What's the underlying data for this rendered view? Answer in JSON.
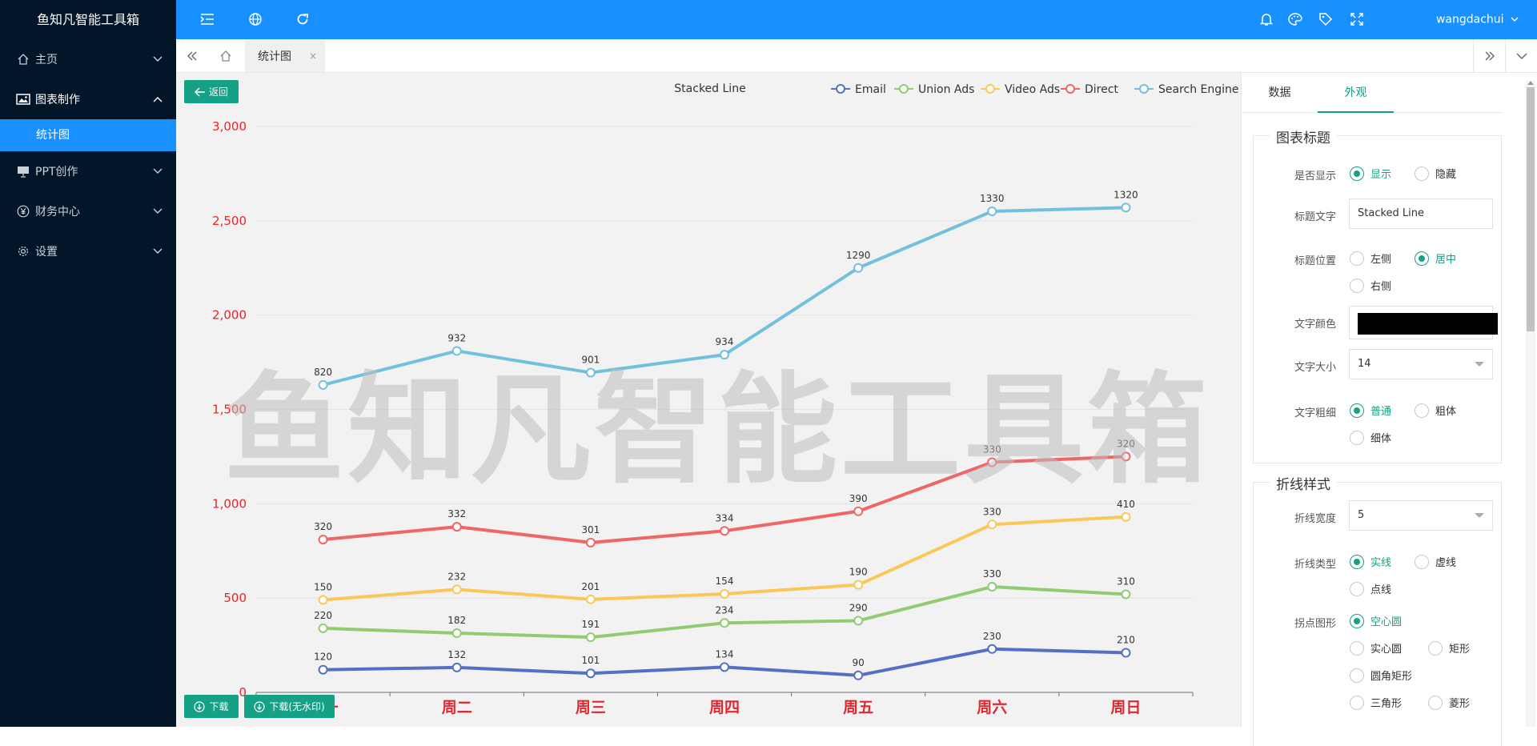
{
  "app": {
    "brand": "鱼知凡智能工具箱",
    "user": "wangdachui"
  },
  "sidebar": {
    "items": [
      {
        "label": "主页"
      },
      {
        "label": "图表制作"
      },
      {
        "label": "PPT创作"
      },
      {
        "label": "财务中心"
      },
      {
        "label": "设置"
      }
    ],
    "submenu": {
      "label": "统计图"
    }
  },
  "tabs": {
    "active": "统计图",
    "close": "×"
  },
  "chart_buttons": {
    "back": "返回",
    "download": "下载",
    "download_nowm": "下载(无水印)"
  },
  "watermark": "鱼知凡智能工具箱",
  "colors": {
    "topbar": "#1890ff",
    "sidebar": "#021529",
    "accent": "#16a085"
  },
  "chart_data": {
    "type": "line",
    "title": "Stacked Line",
    "stacked": true,
    "categories": [
      "周一",
      "周二",
      "周三",
      "周四",
      "周五",
      "周六",
      "周日"
    ],
    "ylim": [
      0,
      3000
    ],
    "yticks": [
      0,
      500,
      1000,
      1500,
      2000,
      2500,
      3000
    ],
    "ytick_labels": [
      "0",
      "500",
      "1,000",
      "1,500",
      "2,000",
      "2,500",
      "3,000"
    ],
    "legend_position": "top-right",
    "grid": true,
    "series": [
      {
        "name": "Email",
        "color": "#5470c6",
        "values": [
          120,
          132,
          101,
          134,
          90,
          230,
          210
        ]
      },
      {
        "name": "Union Ads",
        "color": "#91cc75",
        "values": [
          220,
          182,
          191,
          234,
          290,
          330,
          310
        ]
      },
      {
        "name": "Video Ads",
        "color": "#fac858",
        "values": [
          150,
          232,
          201,
          154,
          190,
          330,
          410
        ]
      },
      {
        "name": "Direct",
        "color": "#ee6666",
        "values": [
          320,
          332,
          301,
          334,
          390,
          330,
          320
        ]
      },
      {
        "name": "Search Engine",
        "color": "#73c0de",
        "values": [
          820,
          932,
          901,
          934,
          1290,
          1330,
          1320
        ]
      }
    ]
  },
  "panel": {
    "tabs": [
      "数据",
      "外观"
    ],
    "active_tab": "外观",
    "title_section": {
      "legend": "图表标题",
      "show_label": "是否显示",
      "show_options": [
        "显示",
        "隐藏"
      ],
      "show_selected": "显示",
      "text_label": "标题文字",
      "text_value": "Stacked Line",
      "position_label": "标题位置",
      "position_options": [
        "左侧",
        "居中",
        "右侧"
      ],
      "position_selected": "居中",
      "color_label": "文字颜色",
      "color_value": "#000000",
      "size_label": "文字大小",
      "size_value": "14",
      "weight_label": "文字粗细",
      "weight_options": [
        "普通",
        "粗体",
        "细体"
      ],
      "weight_selected": "普通"
    },
    "line_section": {
      "legend": "折线样式",
      "width_label": "折线宽度",
      "width_value": "5",
      "type_label": "折线类型",
      "type_options": [
        "实线",
        "虚线",
        "点线"
      ],
      "type_selected": "实线",
      "symbol_label": "拐点图形",
      "symbol_options": [
        "空心圆",
        "实心圆",
        "矩形",
        "圆角矩形",
        "三角形",
        "菱形"
      ],
      "symbol_selected": "空心圆"
    }
  }
}
